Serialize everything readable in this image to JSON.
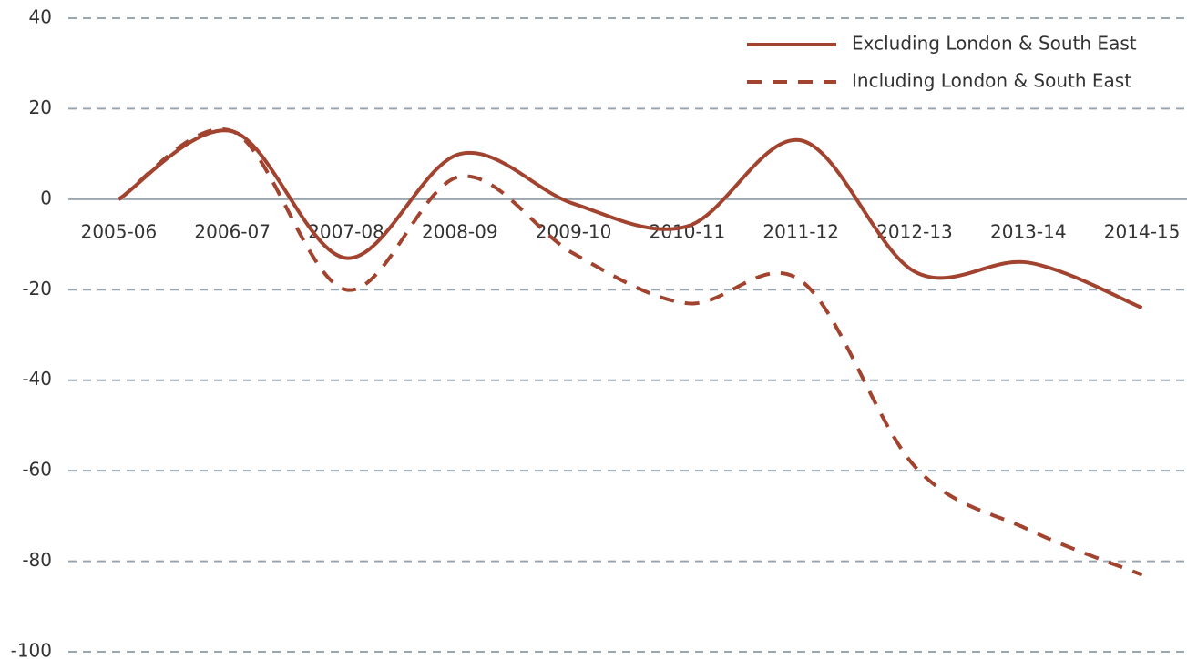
{
  "chart_data": {
    "type": "line",
    "categories": [
      "2005-06",
      "2006-07",
      "2007-08",
      "2008-09",
      "2009-10",
      "2010-11",
      "2011-12",
      "2012-13",
      "2013-14",
      "2014-15"
    ],
    "series": [
      {
        "name": "Excluding London & South East",
        "color": "#a1432f",
        "style": "solid",
        "values": [
          0,
          15,
          -13,
          10,
          -1,
          -6,
          13,
          -16,
          -14,
          -24
        ]
      },
      {
        "name": "Including London & South East",
        "color": "#a1432f",
        "style": "dashed",
        "values": [
          0,
          15,
          -20,
          5,
          -12,
          -23,
          -18,
          -59,
          -73,
          -83
        ]
      }
    ],
    "ylim": [
      -100,
      40
    ],
    "yticks": [
      -100,
      -80,
      -60,
      -40,
      -20,
      0,
      20,
      40
    ],
    "grid": true,
    "smooth": true,
    "legend": "top-right"
  }
}
